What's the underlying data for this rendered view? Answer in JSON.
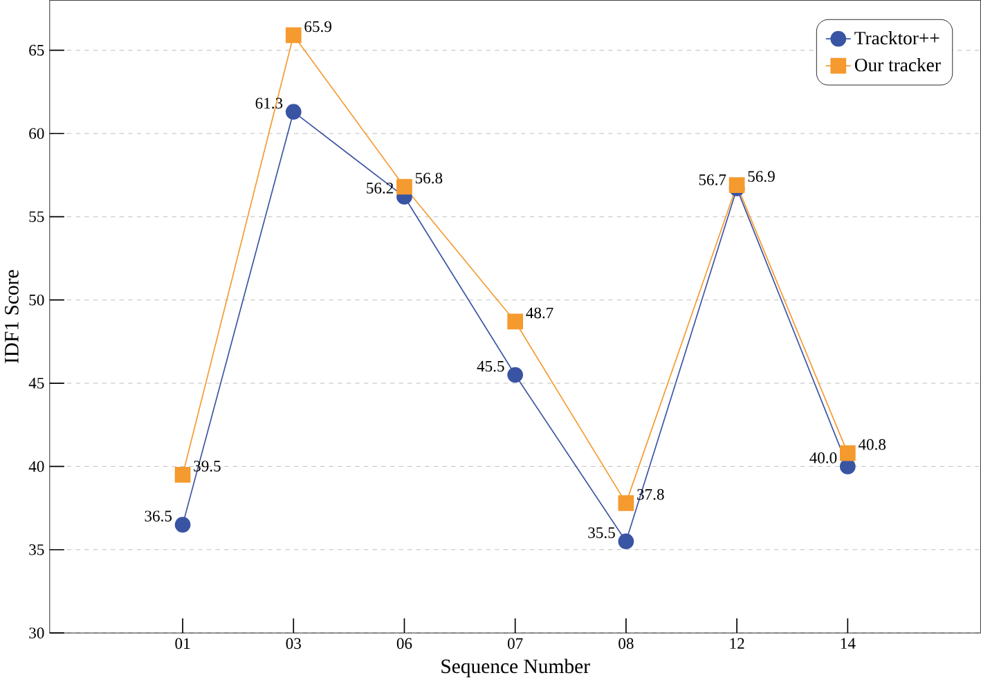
{
  "chart_data": {
    "type": "line",
    "xlabel": "Sequence Number",
    "ylabel": "IDF1 Score",
    "categories": [
      "01",
      "03",
      "06",
      "07",
      "08",
      "12",
      "14"
    ],
    "series": [
      {
        "name": "Tracktor++",
        "color": "#3a54a4",
        "marker": "circle",
        "values": [
          36.5,
          61.3,
          56.2,
          45.5,
          35.5,
          56.7,
          40.0
        ],
        "value_labels": [
          "36.5",
          "61.3",
          "56.2",
          "45.5",
          "35.5",
          "56.7",
          "40.0"
        ]
      },
      {
        "name": "Our tracker",
        "color": "#f59a2f",
        "marker": "square",
        "values": [
          39.5,
          65.9,
          56.8,
          48.7,
          37.8,
          56.9,
          40.8
        ],
        "value_labels": [
          "39.5",
          "65.9",
          "56.8",
          "48.7",
          "37.8",
          "56.9",
          "40.8"
        ]
      }
    ],
    "ylim": [
      30,
      68
    ],
    "yticks": [
      30,
      35,
      40,
      45,
      50,
      55,
      60,
      65
    ],
    "grid": "y",
    "legend": "top right",
    "line_style": "solid"
  }
}
